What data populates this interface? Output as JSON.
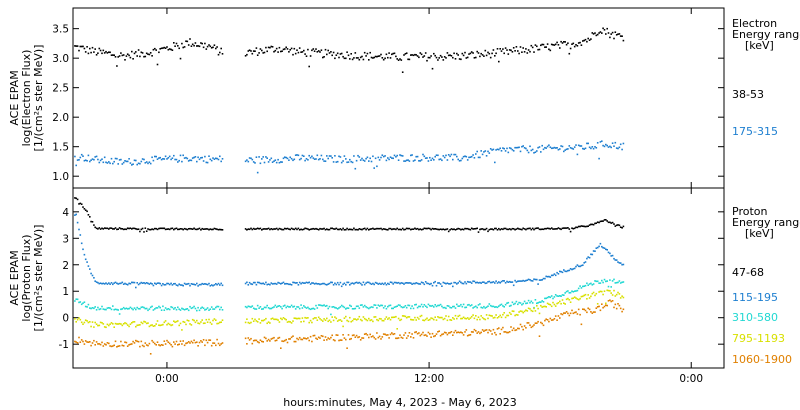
{
  "chart_data": [
    {
      "type": "scatter",
      "panel": "electron",
      "ylabel_lines": [
        "ACE EPAM",
        "log(Electron Flux)",
        "[1/(cm²s ster MeV)]"
      ],
      "ylim": [
        0.8,
        3.85
      ],
      "yticks": [
        "1.0",
        "1.5",
        "2.0",
        "2.5",
        "3.0",
        "3.5"
      ],
      "yticks_values": [
        1.0,
        1.5,
        2.0,
        2.5,
        3.0,
        3.5
      ],
      "legend_title": [
        "Electron",
        "Energy ranges",
        "[keV]"
      ],
      "series": [
        {
          "name": "38-53",
          "color": "#000000",
          "profile": [
            [
              -4.2,
              3.2
            ],
            [
              -3.3,
              3.12
            ],
            [
              -2.0,
              3.05
            ],
            [
              -1.0,
              3.1
            ],
            [
              0,
              3.18
            ],
            [
              1.0,
              3.28
            ],
            [
              2.0,
              3.2
            ],
            [
              2.5,
              3.1
            ],
            [
              3.6,
              3.1
            ],
            [
              5.0,
              3.18
            ],
            [
              6.0,
              3.12
            ],
            [
              7.5,
              3.08
            ],
            [
              9.0,
              3.05
            ],
            [
              10.5,
              3.03
            ],
            [
              12.0,
              3.04
            ],
            [
              13.5,
              3.05
            ],
            [
              14.5,
              3.08
            ],
            [
              15.5,
              3.12
            ],
            [
              17.0,
              3.18
            ],
            [
              18.5,
              3.25
            ],
            [
              19.3,
              3.34
            ],
            [
              19.8,
              3.52
            ],
            [
              20.3,
              3.42
            ],
            [
              20.8,
              3.38
            ]
          ],
          "spread": 0.07
        },
        {
          "name": "175-315",
          "color": "#1e7fd0",
          "profile": [
            [
              -4.2,
              1.35
            ],
            [
              -3.0,
              1.28
            ],
            [
              -2.0,
              1.25
            ],
            [
              -1.0,
              1.28
            ],
            [
              0,
              1.3
            ],
            [
              1.0,
              1.32
            ],
            [
              2.0,
              1.3
            ],
            [
              2.5,
              1.3
            ],
            [
              3.6,
              1.28
            ],
            [
              5.0,
              1.3
            ],
            [
              6.0,
              1.32
            ],
            [
              8.0,
              1.3
            ],
            [
              10.0,
              1.32
            ],
            [
              12.0,
              1.33
            ],
            [
              13.5,
              1.32
            ],
            [
              14.5,
              1.4
            ],
            [
              15.5,
              1.46
            ],
            [
              17.0,
              1.47
            ],
            [
              18.5,
              1.5
            ],
            [
              19.5,
              1.52
            ],
            [
              20.0,
              1.56
            ],
            [
              20.8,
              1.52
            ]
          ],
          "spread": 0.06
        }
      ],
      "xlim": [
        -4.3,
        25.5
      ]
    },
    {
      "type": "scatter",
      "panel": "proton",
      "ylabel_lines": [
        "ACE EPAM",
        "log(Proton Flux)",
        "[1/(cm²s ster MeV)]"
      ],
      "ylim": [
        -1.9,
        4.9
      ],
      "yticks": [
        "-1",
        "0",
        "1",
        "2",
        "3",
        "4"
      ],
      "yticks_values": [
        -1,
        0,
        1,
        2,
        3,
        4
      ],
      "legend_title": [
        "Proton",
        "Energy ranges",
        "[keV]"
      ],
      "series": [
        {
          "name": "47-68",
          "color": "#000000",
          "profile": [
            [
              -4.2,
              4.55
            ],
            [
              -3.7,
              4.05
            ],
            [
              -3.3,
              3.4
            ],
            [
              0,
              3.38
            ],
            [
              2.5,
              3.38
            ],
            [
              3.6,
              3.38
            ],
            [
              10.0,
              3.38
            ],
            [
              16.0,
              3.38
            ],
            [
              18.5,
              3.4
            ],
            [
              19.5,
              3.55
            ],
            [
              20.0,
              3.72
            ],
            [
              20.5,
              3.55
            ],
            [
              20.8,
              3.45
            ]
          ],
          "spread": 0.03
        },
        {
          "name": "115-195",
          "color": "#1e7fd0",
          "profile": [
            [
              -4.2,
              3.95
            ],
            [
              -3.8,
              2.3
            ],
            [
              -3.3,
              1.35
            ],
            [
              0,
              1.28
            ],
            [
              2.5,
              1.28
            ],
            [
              3.6,
              1.32
            ],
            [
              10.0,
              1.32
            ],
            [
              15.5,
              1.38
            ],
            [
              17.0,
              1.45
            ],
            [
              18.0,
              1.75
            ],
            [
              19.0,
              2.05
            ],
            [
              19.8,
              2.8
            ],
            [
              20.3,
              2.4
            ],
            [
              20.8,
              2.0
            ]
          ],
          "spread": 0.05
        },
        {
          "name": "310-580",
          "color": "#22d8d2",
          "profile": [
            [
              -4.2,
              0.7
            ],
            [
              -3.6,
              0.45
            ],
            [
              -3.3,
              0.4
            ],
            [
              0,
              0.38
            ],
            [
              2.5,
              0.38
            ],
            [
              3.6,
              0.42
            ],
            [
              10.0,
              0.44
            ],
            [
              15.0,
              0.48
            ],
            [
              17.0,
              0.65
            ],
            [
              18.5,
              1.05
            ],
            [
              19.5,
              1.35
            ],
            [
              20.3,
              1.5
            ],
            [
              20.8,
              1.3
            ]
          ],
          "spread": 0.08
        },
        {
          "name": "795-1193",
          "color": "#d8e000",
          "profile": [
            [
              -4.2,
              -0.05
            ],
            [
              -3.3,
              -0.25
            ],
            [
              0,
              -0.18
            ],
            [
              2.5,
              -0.1
            ],
            [
              3.6,
              -0.1
            ],
            [
              10.0,
              0.0
            ],
            [
              15.0,
              0.05
            ],
            [
              17.0,
              0.4
            ],
            [
              18.5,
              0.7
            ],
            [
              19.5,
              0.9
            ],
            [
              20.3,
              1.0
            ],
            [
              20.8,
              0.85
            ]
          ],
          "spread": 0.1
        },
        {
          "name": "1060-1900",
          "color": "#e08000",
          "profile": [
            [
              -4.2,
              -0.8
            ],
            [
              -3.3,
              -0.95
            ],
            [
              0,
              -0.95
            ],
            [
              2.5,
              -0.9
            ],
            [
              3.6,
              -0.85
            ],
            [
              10.0,
              -0.65
            ],
            [
              15.0,
              -0.5
            ],
            [
              17.0,
              -0.2
            ],
            [
              18.5,
              0.2
            ],
            [
              19.5,
              0.3
            ],
            [
              20.3,
              0.6
            ],
            [
              20.8,
              0.35
            ]
          ],
          "spread": 0.12
        }
      ],
      "xlim": [
        -4.3,
        25.5
      ]
    }
  ],
  "data_gap": [
    2.55,
    3.55
  ],
  "data_end": 20.9,
  "xticks": [
    "0:00",
    "12:00",
    "0:00"
  ],
  "xticks_values": [
    0,
    12,
    24
  ],
  "xlabel": "hours:minutes, May  4, 2023 - May  6, 2023"
}
